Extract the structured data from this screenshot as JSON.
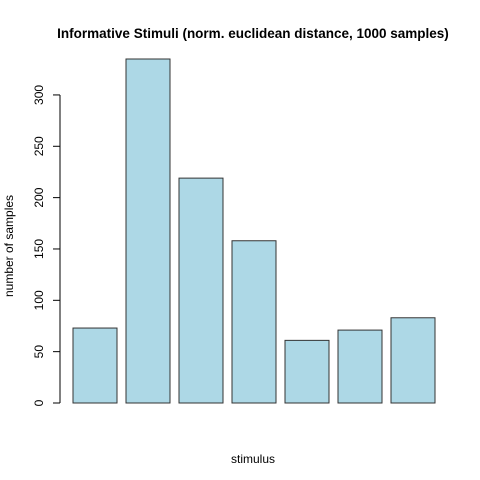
{
  "chart_data": {
    "type": "bar",
    "title": "Informative Stimuli (norm. euclidean distance, 1000 samples)",
    "xlabel": "stimulus",
    "ylabel": "number of samples",
    "categories": [
      "",
      "",
      "",
      "",
      "",
      "",
      ""
    ],
    "values": [
      73,
      335,
      219,
      158,
      61,
      71,
      83
    ],
    "ylim": [
      0,
      335
    ],
    "yticks": [
      0,
      50,
      100,
      150,
      200,
      250,
      300
    ],
    "bar_color": "#ADD8E6",
    "grid": false,
    "legend": "none"
  }
}
